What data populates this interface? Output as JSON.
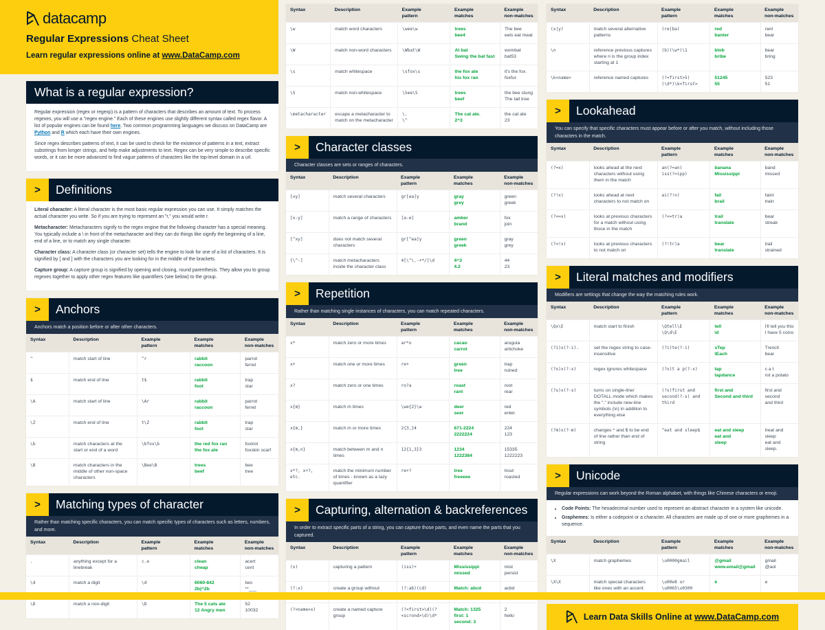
{
  "colors": {
    "yellow": "#fcce0d",
    "navy": "#05192d",
    "intro": "#213147",
    "match_green": "#03a33b"
  },
  "hero": {
    "logo_text": "datacamp",
    "title_bold": "Regular Expressions",
    "title_rest": "Cheat Sheet",
    "sub_text": "Learn regular expressions online at ",
    "sub_link": "www.DataCamp.com"
  },
  "headers": [
    "Syntax",
    "Description",
    "Example\npattern",
    "Example\nmatches",
    "Example\nnon-matches"
  ],
  "col1": [
    {
      "type": "text",
      "title": "What is a regular expression?",
      "plain": true,
      "paras": [
        [
          {
            "t": "Regular expression (regex or regexp) is a pattern of characters that describes an amount of text. To process regexes, you will use a \"regex engine.\" Each of these engines use slightly different syntax called regex flavor. A list of popular engines can be found "
          },
          {
            "t": "here",
            "link": true
          },
          {
            "t": ". Two common programming languages we discuss on DataCamp are "
          },
          {
            "t": "Python",
            "link": true
          },
          {
            "t": " and "
          },
          {
            "t": "R",
            "link": true
          },
          {
            "t": " which each have their own engines."
          }
        ],
        [
          {
            "t": "Since regex describes patterns of text, it can be used to check for the existence of patterns in a text, extract substrings from longer strings, and help make adjustments to text. Regex can be very simple to describe specific words, or it can be more advanced to find vague patterns of characters like the top-level domain in a url."
          }
        ]
      ]
    },
    {
      "type": "defs",
      "title": "Definitions",
      "items": [
        {
          "label": "Literal character:",
          "text": " A literal character is the most basic regular expression you can use. It simply matches the actual character you write. So if you are trying to represent an \"r,\" you would write r."
        },
        {
          "label": "Metacharacter:",
          "text": " Metacharacters signify to the regex engine that the following character has a special meaning. You typically include a \\ in front of the metacharacter and they can do things like signify the beginning of a line, end of a line, or to match any single character."
        },
        {
          "label": "Character class:",
          "text": " A character class (or character set) tells the engine to look for one of a list of characters. It is signified by [ and ] with the characters you are looking for in the middle of the brackets."
        },
        {
          "label": "Capture group:",
          "text": " A capture group is signified by opening and closing, round parenthesis. They allow you to group regexes together to apply other regex features like quantifiers (see below) to the group."
        }
      ]
    },
    {
      "type": "table",
      "title": "Anchors",
      "intro": "Anchors match a position before or after other characters.",
      "rows": [
        [
          "^",
          "match start of line",
          "^r",
          "rabbit\nraccoon",
          "parrot\nferret"
        ],
        [
          "$",
          "match end of line",
          "t$",
          "rabbit\nfoot",
          "trap\nstar"
        ],
        [
          "\\A",
          "match start of line",
          "\\Ar",
          "rabbit\nraccoon",
          "parrot\nferret"
        ],
        [
          "\\Z",
          "match end of line",
          "t\\Z",
          "rabbit\nfoot",
          "trap\nstar"
        ],
        [
          "\\b",
          "match characters at the start or end of a word",
          "\\bfox\\b",
          "the red fox ran\nthe fox ate",
          "foxtrot\nfoxskin scarf"
        ],
        [
          "\\B",
          "match characters in the middle of other non-space characters",
          "\\Bee\\B",
          "trees\nbeef",
          "bee\ntree"
        ]
      ]
    },
    {
      "type": "table",
      "title": "Matching types of character",
      "intro": "Rather than matching specific characters, you can match specific types of characters such as letters, numbers, and more.",
      "rows": [
        [
          ".",
          "anything except for a linebreak",
          "c.e",
          "clean\ncheap",
          "acert\ncent"
        ],
        [
          "\\d",
          "match a digit",
          "\\d",
          "6060-842\n2b|^2b",
          "two\n**___"
        ],
        [
          "\\D",
          "match a non-digit",
          "\\D",
          "The 5 cats ate\n12 Angry men",
          "52\n10032"
        ]
      ]
    }
  ],
  "col2": [
    {
      "type": "table",
      "rows": [
        [
          "\\w",
          "match word characters",
          "\\wee\\w",
          "trees\nbee4",
          "The bee\neels eat meat"
        ],
        [
          "\\W",
          "match non-word characters",
          "\\Wbat\\W",
          "At bat\nSwing the bat fast",
          "wombat\nbat53"
        ],
        [
          "\\s",
          "match whitespace",
          "\\sfox\\s",
          "the fox ate\nhis fox ran",
          "it's the fox.\nfoxfur"
        ],
        [
          "\\S",
          "match non-whitespace",
          "\\See\\S",
          "trees\nbeef",
          "the bee stung\nThe tall tree"
        ],
        [
          "\\metacharacter",
          "escape a metacharacter to match on the metacharacter",
          "\\.\n\\^",
          "The cat ate.\n2^3",
          "the cat ate\n23"
        ]
      ]
    },
    {
      "type": "table",
      "title": "Character classes",
      "intro": "Character classes are sets or ranges of characters.",
      "rows": [
        [
          "[xy]",
          "match several characters",
          "gr[ea]y",
          "gray\ngrey",
          "green\ngreek"
        ],
        [
          "[x-y]",
          "match a range of characters",
          "[a-e]",
          "amber\nbrand",
          "fox\njoin"
        ],
        [
          "[^xy]",
          "does not match several characters",
          "gr[^ea]y",
          "green\ngreek",
          "gray\ngrey"
        ],
        [
          "[\\^-]",
          "match metacharacters inside the character class",
          "4[\\^\\.-+*/]\\d",
          "4^3\n4.2",
          "44\n23"
        ]
      ]
    },
    {
      "type": "table",
      "title": "Repetition",
      "intro": "Rather than matching single instances of characters, you can match repeated characters.",
      "rows": [
        [
          "x*",
          "match zero or more times",
          "ar*o",
          "cacao\ncarrot",
          "arugula\nartichoke"
        ],
        [
          "x+",
          "match one or more times",
          "re+",
          "green\ntree",
          "trap\nruined"
        ],
        [
          "x?",
          "match zero or one times",
          "ro?a",
          "roast\nrant",
          "root\nrear"
        ],
        [
          "x{m}",
          "match m times",
          "\\we{2}\\w",
          "deer\nseer",
          "red\nenter"
        ],
        [
          "x{m,}",
          "match m or more times",
          "2{3,}4",
          "671-2224\n2222224",
          "224\n123"
        ],
        [
          "x{m,n}",
          "match between m and n times",
          "12{1,3}3",
          "1234\n1222384",
          "15335\n1222223"
        ],
        [
          "x*?, x+?,\netc.",
          "match the minimum number of times - known as a lazy quantifier",
          "re+?",
          "tree\nfreeeee",
          "trout\nroasted"
        ]
      ]
    },
    {
      "type": "table",
      "title": "Capturing, alternation & backreferences",
      "intro": "In order to extract specific parts of a string, you can capture those parts, and even name the parts that you captured.",
      "rows": [
        [
          "(x)",
          "capturing a pattern",
          "(iss)+",
          "Mississippi\nmissed",
          "mist\npersist"
        ],
        [
          "(?:x)",
          "create a group without capturing",
          "(?:ab)(cd)",
          "Match: abcd\nGroup 1: cd",
          "acbd"
        ],
        [
          "(?<name>x)",
          "create a named capture group",
          "(?<first>\\d)(?<scrond>\\d)\\d*",
          "Match: 1325\nfirst: 1\nsecond: 3",
          "2\nhello"
        ]
      ]
    }
  ],
  "col3": [
    {
      "type": "table",
      "rows": [
        [
          "(x|y)",
          "match several alternative patterns",
          "(re|ba)",
          "red\nbanter",
          "rant\nbear"
        ],
        [
          "\\n",
          "reference previous captures where n is the group index starting at 1",
          "(b)(\\w*)\\1",
          "blob\nbribe",
          "bear\nbring"
        ],
        [
          "\\k<name>",
          "reference named captures",
          "(?<first>5)\n(\\d*)\\k<first>",
          "51245\n55",
          "523\n51"
        ]
      ]
    },
    {
      "type": "table",
      "title": "Lookahead",
      "intro": "You can specify that specific characters must appear before or after you match, without including those characters in the match.",
      "rows": [
        [
          "(?=x)",
          "looks ahead at the next characters without using them in the match",
          "an(?=an)\niss(?=ipp)",
          "banana\nMississippi",
          "band\nmissed"
        ],
        [
          "(?!x)",
          "looks ahead at next characters to not match on",
          "ai(?!n)",
          "fail\nbrail",
          "faint\ntrain"
        ],
        [
          "(?<=x)",
          "looks at previous characters for a match without using those in the match",
          "(?<=tr)a",
          "trail\ntranslate",
          "bear\nstreak"
        ],
        [
          "(?<!x)",
          "looks at previous characters to not match on",
          "(?!tr)a",
          "bear\ntranslate",
          "trail\nstrained"
        ]
      ]
    },
    {
      "type": "table",
      "title": "Literal matches and modifiers",
      "intro": "Modifiers are settings that change the way the matching rules work.",
      "rows": [
        [
          "\\Qx\\E",
          "match start to finish",
          "\\Qtell\\E\n\\Q\\d\\E",
          "tell\n\\d",
          "I'll tell you this\nI have 5 coins"
        ],
        [
          "(?i)x(?-i).",
          "set the regex string to case-insensitive",
          "(?i)te(?-i)",
          "sTep\ntEach",
          "Trench\nbear"
        ],
        [
          "(?x)x(?-x)",
          "regex ignores whitespace",
          "(?x)t a p(?-x)",
          "tap\ntapdance",
          "c a t\nrot a potato"
        ],
        [
          "(?s)x(?-s)",
          "turns on single-line/ DOTALL mode which makes the \".\" include new-line symbols (\\n) in addition to everything else",
          "(?s)first and second(?-s) and third",
          "first and\nSecond and third",
          "first and\nsecond\nand third"
        ],
        [
          "(?m)x(?-m)",
          "changes ^ and $ to be end of line rather than end of string",
          "^eat and sleep$",
          "eat and sleep\neat and\nsleep",
          "treat and\nsleep\neat and sleep."
        ]
      ]
    },
    {
      "type": "table",
      "title": "Unicode",
      "intro": "Regular expressions can work beyond the Roman alphabet, with things like Chinese characters or emoji.",
      "bullets": [
        {
          "label": "Code Points:",
          "text": " The hexadecimal number used to represent an abstract character in a system like unicode."
        },
        {
          "label": "Graphemes:",
          "text": " Is either a codepoint or a character. All characters are made up of one or more graphemes in a sequence."
        }
      ],
      "rows": [
        [
          "\\X",
          "match graphemes",
          "\\u0000gmail",
          "@gmail\nwww.email@gmail",
          "gmail\n@aol"
        ],
        [
          "\\X\\X",
          "match special characters like ones with an accent",
          "\\u00e8 or\n\\u0065\\u0300",
          "è",
          "e"
        ]
      ]
    },
    {
      "type": "banner",
      "text": "Learn Data Skills Online at ",
      "link": "www.DataCamp.com"
    }
  ]
}
